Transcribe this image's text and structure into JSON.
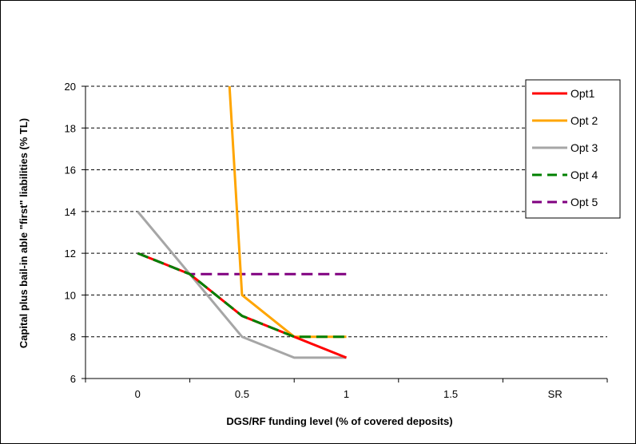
{
  "chart_data": {
    "type": "line",
    "title": "",
    "xlabel": "DGS/RF funding level (% of covered deposits)",
    "ylabel": "Capital plus bail-in able \"first\" liabilities  (% TL)",
    "categories": [
      "0",
      "0.5",
      "1",
      "1.5",
      "SR"
    ],
    "ylim": [
      6,
      20
    ],
    "yticks": [
      6,
      8,
      10,
      12,
      14,
      16,
      18,
      20
    ],
    "grid": "horizontal dashed",
    "legend_position": "top-right",
    "series": [
      {
        "name": "Opt1",
        "color": "#ff0000",
        "dash": "solid",
        "points": [
          [
            0,
            12
          ],
          [
            0.5,
            11
          ],
          [
            1,
            9
          ],
          [
            1.5,
            8
          ],
          [
            2,
            7
          ]
        ]
      },
      {
        "name": "Opt 2",
        "color": "#ffa500",
        "dash": "solid",
        "points": [
          [
            0.88,
            20
          ],
          [
            1,
            10
          ],
          [
            1.5,
            8
          ],
          [
            2,
            8
          ]
        ]
      },
      {
        "name": "Opt 3",
        "color": "#a6a6a6",
        "dash": "solid",
        "points": [
          [
            0,
            14
          ],
          [
            0.5,
            11
          ],
          [
            1,
            8
          ],
          [
            1.5,
            7
          ],
          [
            2,
            7
          ]
        ]
      },
      {
        "name": "Opt 4",
        "color": "#008000",
        "dash": "dashed",
        "points": [
          [
            0,
            12
          ],
          [
            0.5,
            11
          ],
          [
            1,
            9
          ],
          [
            1.5,
            8
          ],
          [
            2,
            8
          ]
        ]
      },
      {
        "name": "Opt 5",
        "color": "#800080",
        "dash": "dashed",
        "points": [
          [
            0,
            12
          ],
          [
            0.5,
            11
          ],
          [
            1,
            11
          ],
          [
            1.5,
            11
          ],
          [
            2,
            11
          ]
        ]
      }
    ]
  }
}
